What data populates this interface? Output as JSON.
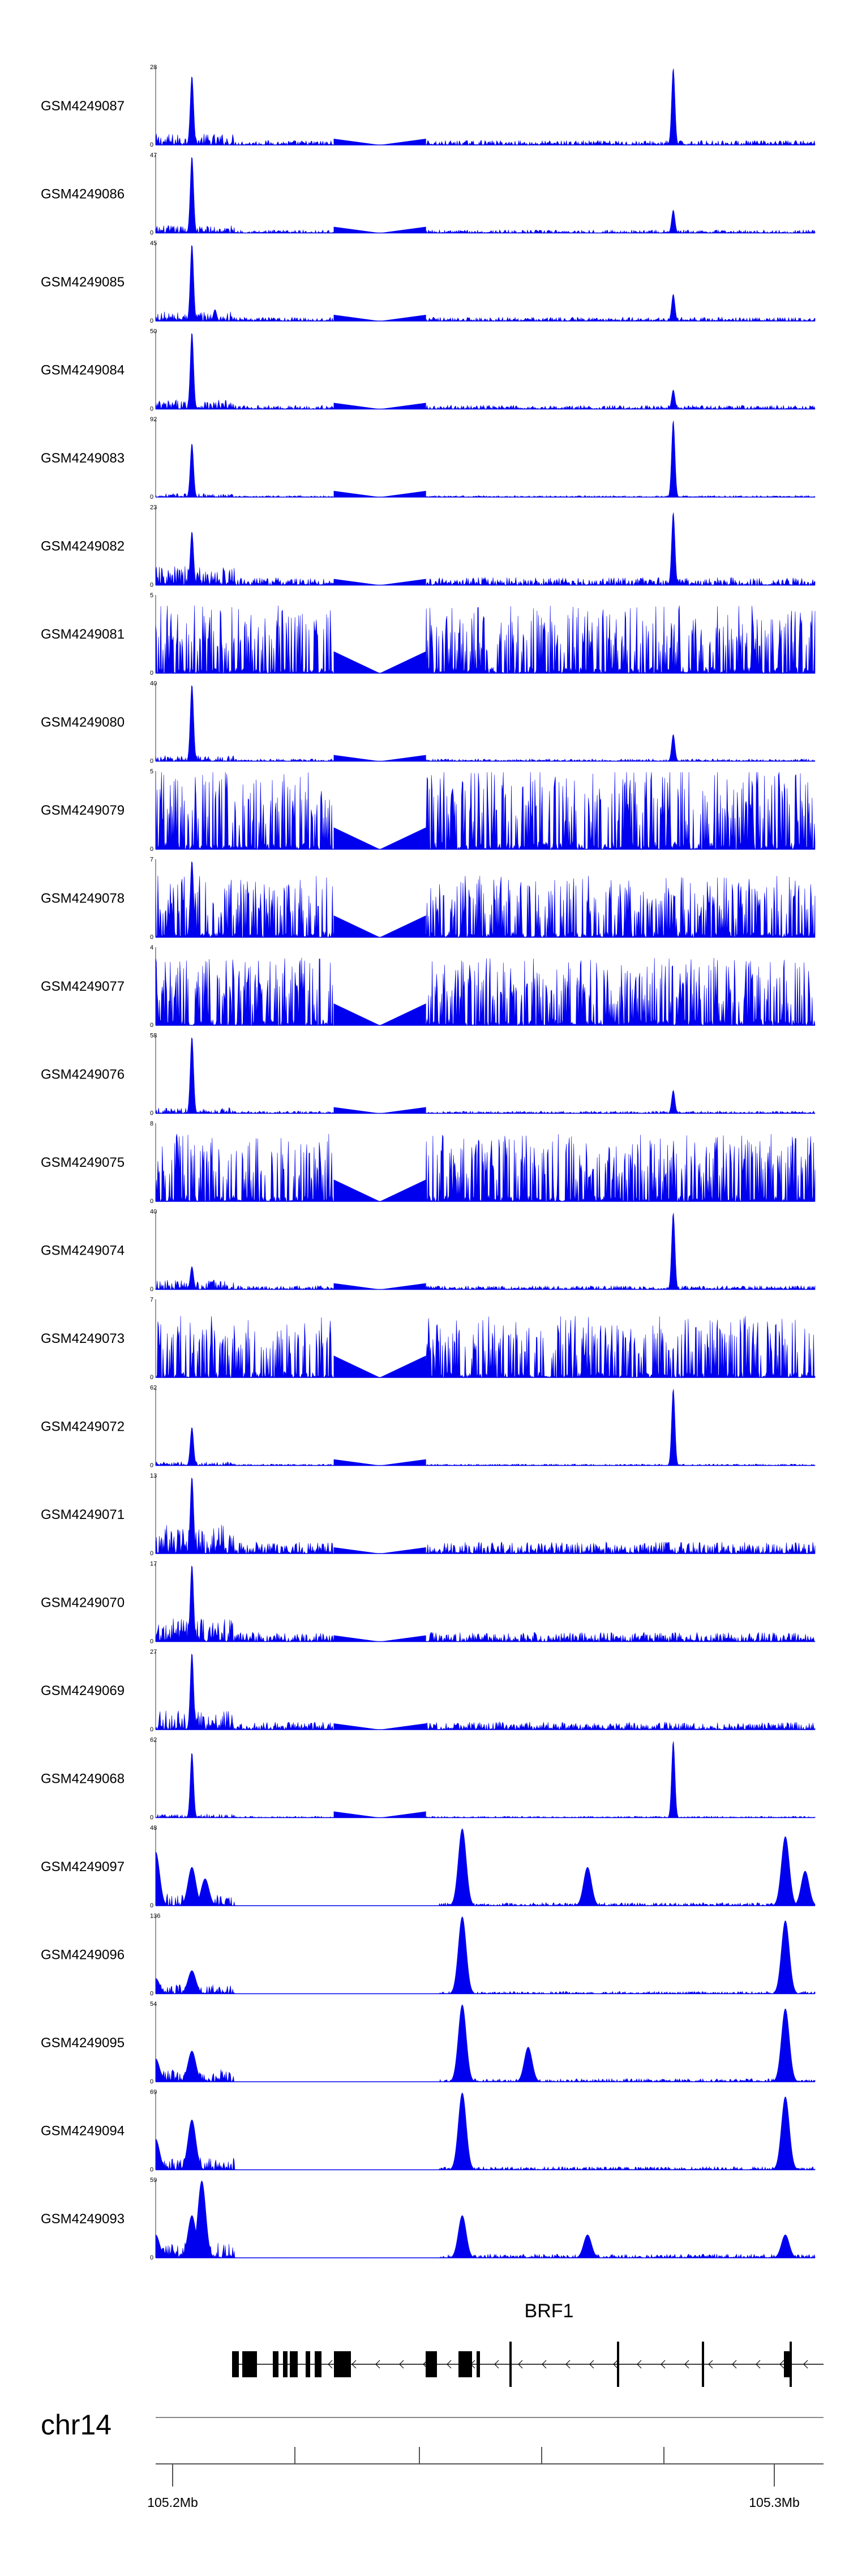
{
  "chart_data": {
    "type": "area",
    "chromosome": "chr14",
    "x_ticks": [
      "105.2Mb",
      "105.3Mb"
    ],
    "gene": {
      "name": "BRF1",
      "strand": "-"
    },
    "colors": {
      "signal": "#0000ee",
      "gene": "#000000",
      "axis": "#555555"
    },
    "regions": [
      {
        "name": "left-cluster",
        "start": 0.0,
        "end": 0.08
      },
      {
        "name": "left-peak",
        "start": 0.08,
        "end": 0.095
      },
      {
        "name": "left-body",
        "start": 0.095,
        "end": 0.27
      },
      {
        "name": "gap",
        "start": 0.27,
        "end": 0.41
      },
      {
        "name": "mid",
        "start": 0.41,
        "end": 0.47
      },
      {
        "name": "mid-peak",
        "start": 0.47,
        "end": 0.48
      },
      {
        "name": "right-body",
        "start": 0.48,
        "end": 0.78
      },
      {
        "name": "right-peak",
        "start": 0.78,
        "end": 0.79
      },
      {
        "name": "far-right",
        "start": 0.79,
        "end": 1.0
      }
    ],
    "tracks": [
      {
        "name": "GSM4249087",
        "ymax": "28",
        "group": "A",
        "noise": 0.06,
        "peaks": [
          [
            0.055,
            0.9
          ],
          [
            0.785,
            1.0
          ]
        ],
        "gap": [
          0.27,
          0.41
        ]
      },
      {
        "name": "GSM4249086",
        "ymax": "47",
        "group": "A",
        "noise": 0.04,
        "peaks": [
          [
            0.055,
            1.0
          ],
          [
            0.785,
            0.3
          ]
        ],
        "gap": [
          0.27,
          0.41
        ]
      },
      {
        "name": "GSM4249085",
        "ymax": "45",
        "group": "A",
        "noise": 0.05,
        "peaks": [
          [
            0.055,
            1.0
          ],
          [
            0.09,
            0.15
          ],
          [
            0.785,
            0.35
          ]
        ],
        "gap": [
          0.27,
          0.41
        ]
      },
      {
        "name": "GSM4249084",
        "ymax": "50",
        "group": "A",
        "noise": 0.05,
        "peaks": [
          [
            0.055,
            1.0
          ],
          [
            0.785,
            0.25
          ]
        ],
        "gap": [
          0.27,
          0.41
        ]
      },
      {
        "name": "GSM4249083",
        "ymax": "92",
        "group": "A",
        "noise": 0.02,
        "peaks": [
          [
            0.055,
            0.7
          ],
          [
            0.785,
            1.0
          ]
        ],
        "gap": [
          0.27,
          0.41
        ]
      },
      {
        "name": "GSM4249082",
        "ymax": "23",
        "group": "A",
        "noise": 0.1,
        "peaks": [
          [
            0.055,
            0.7
          ],
          [
            0.785,
            0.95
          ]
        ],
        "gap": [
          0.27,
          0.41
        ]
      },
      {
        "name": "GSM4249081",
        "ymax": "5",
        "group": "B",
        "noise": 0.55,
        "peaks": [],
        "gap": [
          0.27,
          0.41
        ]
      },
      {
        "name": "GSM4249080",
        "ymax": "40",
        "group": "A",
        "noise": 0.03,
        "peaks": [
          [
            0.055,
            1.0
          ],
          [
            0.785,
            0.35
          ]
        ],
        "gap": [
          0.27,
          0.41
        ]
      },
      {
        "name": "GSM4249079",
        "ymax": "5",
        "group": "B",
        "noise": 0.65,
        "peaks": [],
        "gap": [
          0.27,
          0.41
        ]
      },
      {
        "name": "GSM4249078",
        "ymax": "7",
        "group": "B",
        "noise": 0.5,
        "peaks": [
          [
            0.055,
            1.0
          ]
        ],
        "gap": [
          0.27,
          0.41
        ]
      },
      {
        "name": "GSM4249077",
        "ymax": "4",
        "group": "B",
        "noise": 0.55,
        "peaks": [],
        "gap": [
          0.27,
          0.41
        ]
      },
      {
        "name": "GSM4249076",
        "ymax": "58",
        "group": "A",
        "noise": 0.03,
        "peaks": [
          [
            0.055,
            1.0
          ],
          [
            0.785,
            0.3
          ]
        ],
        "gap": [
          0.27,
          0.41
        ]
      },
      {
        "name": "GSM4249075",
        "ymax": "8",
        "group": "B",
        "noise": 0.55,
        "peaks": [],
        "gap": [
          0.27,
          0.41
        ]
      },
      {
        "name": "GSM4249074",
        "ymax": "40",
        "group": "A",
        "noise": 0.05,
        "peaks": [
          [
            0.055,
            0.3
          ],
          [
            0.785,
            1.0
          ]
        ],
        "gap": [
          0.27,
          0.41
        ]
      },
      {
        "name": "GSM4249073",
        "ymax": "7",
        "group": "B",
        "noise": 0.5,
        "peaks": [],
        "gap": [
          0.27,
          0.41
        ]
      },
      {
        "name": "GSM4249072",
        "ymax": "62",
        "group": "A",
        "noise": 0.02,
        "peaks": [
          [
            0.055,
            0.5
          ],
          [
            0.785,
            1.0
          ]
        ],
        "gap": [
          0.27,
          0.41
        ]
      },
      {
        "name": "GSM4249071",
        "ymax": "13",
        "group": "A",
        "noise": 0.15,
        "peaks": [
          [
            0.055,
            1.0
          ]
        ],
        "gap": [
          0.27,
          0.41
        ]
      },
      {
        "name": "GSM4249070",
        "ymax": "17",
        "group": "A",
        "noise": 0.12,
        "peaks": [
          [
            0.055,
            1.0
          ]
        ],
        "gap": [
          0.27,
          0.41
        ]
      },
      {
        "name": "GSM4249069",
        "ymax": "27",
        "group": "A",
        "noise": 0.1,
        "peaks": [
          [
            0.055,
            1.0
          ]
        ],
        "gap": [
          0.27,
          0.41
        ]
      },
      {
        "name": "GSM4249068",
        "ymax": "62",
        "group": "A",
        "noise": 0.02,
        "peaks": [
          [
            0.055,
            0.85
          ],
          [
            0.785,
            1.0
          ]
        ],
        "gap": [
          0.27,
          0.41
        ]
      },
      {
        "name": "GSM4249097",
        "ymax": "48",
        "group": "C",
        "noise": 0.04,
        "peaks": [
          [
            0.0,
            0.7
          ],
          [
            0.055,
            0.5
          ],
          [
            0.075,
            0.35
          ],
          [
            0.465,
            1.0
          ],
          [
            0.655,
            0.5
          ],
          [
            0.955,
            0.9
          ],
          [
            0.985,
            0.45
          ]
        ],
        "gap": null
      },
      {
        "name": "GSM4249096",
        "ymax": "136",
        "group": "C",
        "noise": 0.03,
        "peaks": [
          [
            0.0,
            0.2
          ],
          [
            0.055,
            0.3
          ],
          [
            0.465,
            1.0
          ],
          [
            0.955,
            0.95
          ]
        ],
        "gap": null
      },
      {
        "name": "GSM4249095",
        "ymax": "54",
        "group": "C",
        "noise": 0.04,
        "peaks": [
          [
            0.0,
            0.3
          ],
          [
            0.055,
            0.4
          ],
          [
            0.465,
            1.0
          ],
          [
            0.565,
            0.45
          ],
          [
            0.955,
            0.95
          ]
        ],
        "gap": null
      },
      {
        "name": "GSM4249094",
        "ymax": "69",
        "group": "C",
        "noise": 0.04,
        "peaks": [
          [
            0.0,
            0.4
          ],
          [
            0.055,
            0.65
          ],
          [
            0.465,
            1.0
          ],
          [
            0.955,
            0.95
          ]
        ],
        "gap": null
      },
      {
        "name": "GSM4249093",
        "ymax": "59",
        "group": "C",
        "noise": 0.05,
        "peaks": [
          [
            0.0,
            0.3
          ],
          [
            0.055,
            0.55
          ],
          [
            0.07,
            1.0
          ],
          [
            0.465,
            0.55
          ],
          [
            0.655,
            0.3
          ],
          [
            0.955,
            0.3
          ]
        ],
        "gap": null
      }
    ]
  }
}
